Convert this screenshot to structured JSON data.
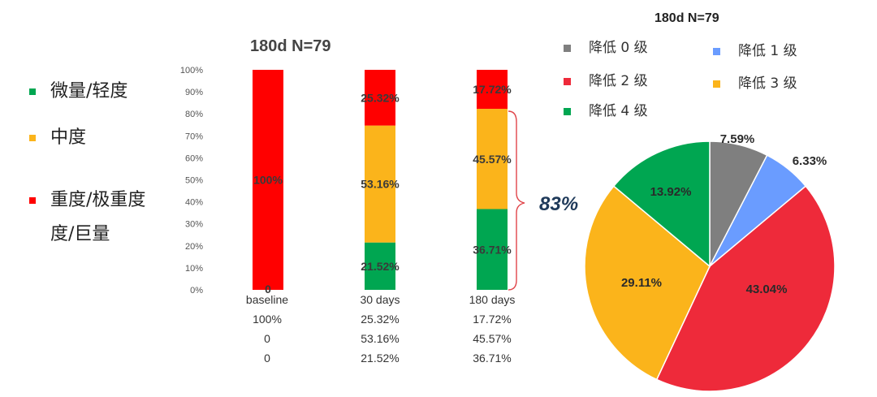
{
  "chart_data": [
    {
      "type": "bar",
      "stacked": true,
      "title": "180d N=79",
      "categories": [
        "baseline",
        "30 days",
        "180 days"
      ],
      "ylim": [
        0,
        100
      ],
      "yticks": [
        "0%",
        "10%",
        "20%",
        "30%",
        "40%",
        "50%",
        "60%",
        "70%",
        "80%",
        "90%",
        "100%"
      ],
      "series": [
        {
          "name": "微量/轻度",
          "color": "#00a651",
          "values": [
            0,
            21.52,
            36.71
          ],
          "labels": [
            "0",
            "21.52%",
            "36.71%"
          ]
        },
        {
          "name": "中度",
          "color": "#fbb41b",
          "values": [
            0,
            53.16,
            45.57
          ],
          "labels": [
            "",
            "53.16%",
            "45.57%"
          ]
        },
        {
          "name": "重度/极重度/巨量",
          "color": "#ff0000",
          "values": [
            100,
            25.32,
            17.72
          ],
          "labels": [
            "100%",
            "25.32%",
            "17.72%"
          ]
        }
      ],
      "legend": [
        {
          "label": "微量/轻度",
          "color": "#00a651"
        },
        {
          "label": "中度",
          "color": "#fbb41b"
        },
        {
          "label_line1": "重度/极重度",
          "label_line2": "度/巨量",
          "color": "#ff0000"
        }
      ],
      "table": [
        [
          "100%",
          "25.32%",
          "17.72%"
        ],
        [
          "0",
          "53.16%",
          "45.57%"
        ],
        [
          "0",
          "21.52%",
          "36.71%"
        ]
      ],
      "annotation": "83%"
    },
    {
      "type": "pie",
      "title": "180d N=79",
      "slices": [
        {
          "name": "降低 0 级",
          "value": 7.59,
          "label": "7.59%",
          "color": "#7f7f7f"
        },
        {
          "name": "降低 1 级",
          "value": 6.33,
          "label": "6.33%",
          "color": "#6a9cff"
        },
        {
          "name": "降低 2 级",
          "value": 43.04,
          "label": "43.04%",
          "color": "#ee2a3a"
        },
        {
          "name": "降低 3 级",
          "value": 29.11,
          "label": "29.11%",
          "color": "#fbb41b"
        },
        {
          "name": "降低 4 级",
          "value": 13.92,
          "label": "13.92%",
          "color": "#00a651"
        }
      ]
    }
  ]
}
